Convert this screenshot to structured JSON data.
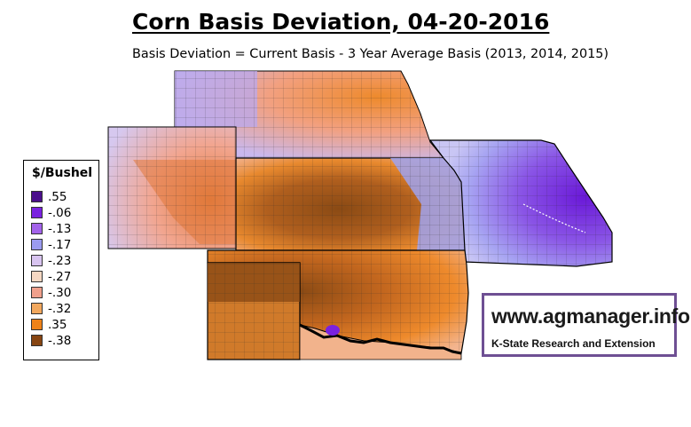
{
  "header": {
    "title": "Corn Basis Deviation, 04-20-2016",
    "subtitle": "Basis Deviation = Current Basis - 3 Year Average Basis (2013, 2014, 2015)"
  },
  "legend": {
    "title": "$/Bushel",
    "items": [
      {
        "label": ".55",
        "color": "#4b0f8c"
      },
      {
        "label": "-.06",
        "color": "#7a22e0"
      },
      {
        "label": "-.13",
        "color": "#a363ea"
      },
      {
        "label": "-.17",
        "color": "#9b9bf0"
      },
      {
        "label": "-.23",
        "color": "#d8c4f0"
      },
      {
        "label": "-.27",
        "color": "#f6d8c3"
      },
      {
        "label": "-.30",
        "color": "#f0a08c"
      },
      {
        "label": "-.32",
        "color": "#f2a85e"
      },
      {
        "label": ".35",
        "color": "#ee8218"
      },
      {
        "label": "-.38",
        "color": "#874512"
      }
    ]
  },
  "brand": {
    "url": "www.agmanager.info",
    "org": "K-State Research and Extension"
  },
  "colors": {
    "brand_border": "#6e4f93",
    "deep_purple": "#5a16c8",
    "brown": "#8a4a14",
    "orange": "#ee8a2c"
  }
}
